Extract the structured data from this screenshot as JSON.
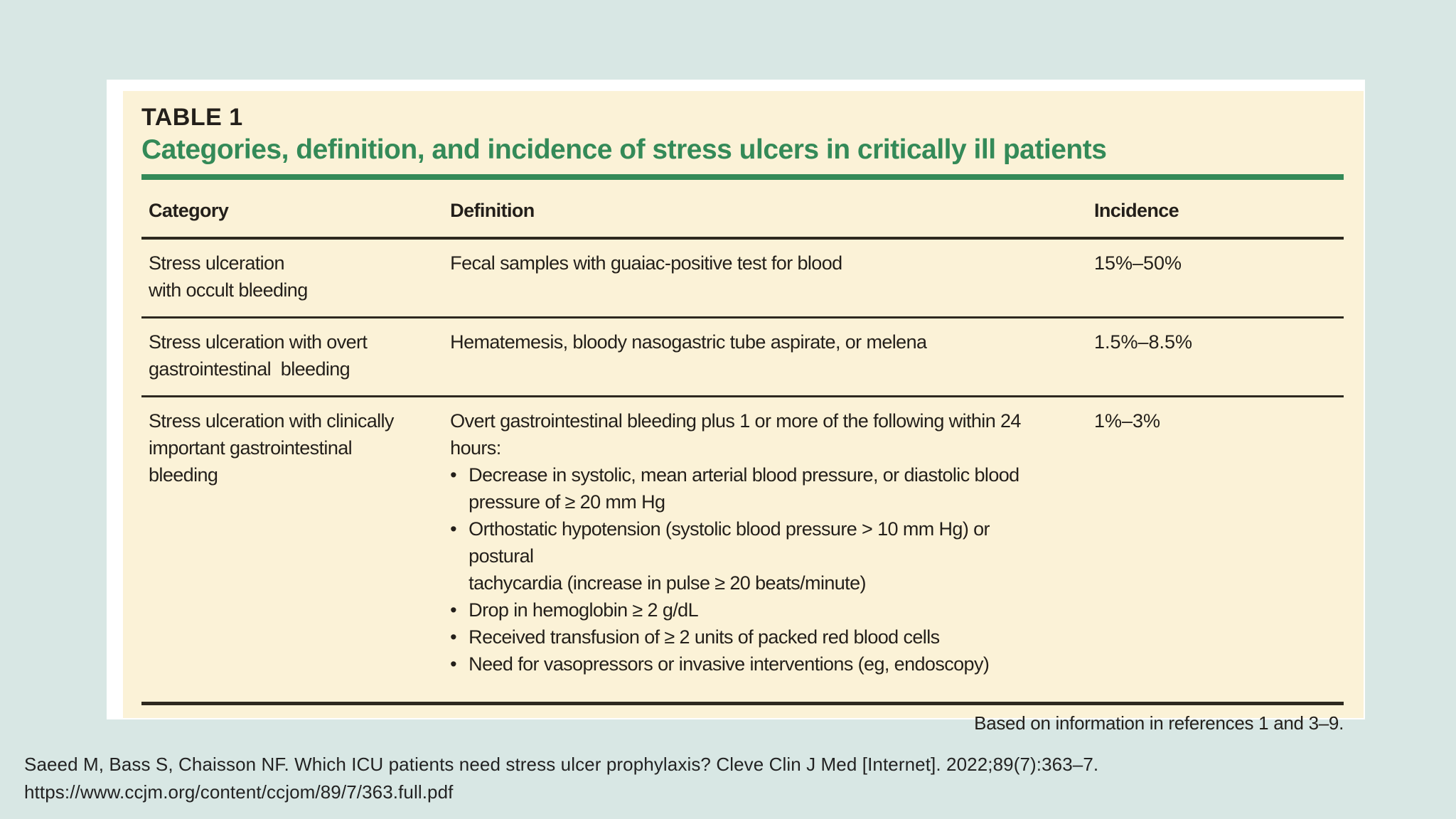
{
  "colors": {
    "page_background": "#d8e7e4",
    "panel_background": "#fbf2d7",
    "accent_green": "#348a58",
    "rule_dark": "#2d291f"
  },
  "table": {
    "label": "TABLE 1",
    "title": "Categories, definition, and incidence of stress ulcers in critically ill patients",
    "bullet_glyph": "•",
    "columns": [
      "Category",
      "Definition",
      "Incidence"
    ],
    "rows": [
      {
        "category": "Stress ulceration\nwith occult bleeding",
        "definition": "Fecal samples with guaiac-positive test for blood",
        "incidence": "15%–50%"
      },
      {
        "category": "Stress ulceration with overt\ngastrointestinal  bleeding",
        "definition": "Hematemesis, bloody nasogastric tube aspirate, or melena",
        "incidence": "1.5%–8.5%"
      },
      {
        "category": "Stress ulceration with clinically\nimportant gastrointestinal\nbleeding",
        "definition_intro": "Overt gastrointestinal bleeding plus 1 or more of the following within 24\nhours:",
        "bullets": [
          "Decrease in systolic, mean arterial blood pressure, or diastolic blood\npressure of ≥ 20 mm Hg",
          "Orthostatic hypotension (systolic blood pressure > 10 mm Hg) or postural\ntachycardia (increase in pulse ≥ 20 beats/minute)",
          "Drop in hemoglobin ≥ 2 g/dL",
          "Received transfusion of ≥ 2 units of packed red blood cells",
          "Need for vasopressors or invasive interventions (eg, endoscopy)"
        ],
        "incidence": "1%–3%"
      }
    ],
    "footnote": "Based on information in references 1 and 3–9."
  },
  "citation": {
    "line1": "Saeed M, Bass S, Chaisson NF. Which ICU patients need stress ulcer prophylaxis? Cleve Clin J Med [Internet]. 2022;89(7):363–7.",
    "line2": "https://www.ccjm.org/content/ccjom/89/7/363.full.pdf"
  }
}
